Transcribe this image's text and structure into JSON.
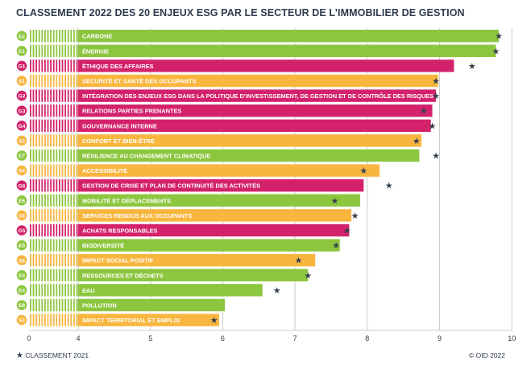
{
  "title": "CLASSEMENT 2022 DES 20 ENJEUX ESG PAR LE SECTEUR DE L’IMMOBILIER DE GESTION",
  "legend": {
    "symbol": "★",
    "label": "CLASSEMENT 2021"
  },
  "credit": "© OID 2022",
  "colors": {
    "E": "#8cc63f",
    "S": "#f8b63f",
    "G": "#d3226b",
    "star": "#34404f",
    "axis": "#cccccc"
  },
  "chart_data": {
    "type": "bar",
    "orientation": "horizontal",
    "xlim": [
      0,
      10
    ],
    "broken_axis": {
      "from": 0,
      "to": 4
    },
    "xticks": [
      "0",
      "4",
      "5",
      "6",
      "7",
      "8",
      "9",
      "10"
    ],
    "categories": [
      {
        "code": "E2",
        "group": "E",
        "label": "CARBONE",
        "value": 9.82,
        "prev": 9.82
      },
      {
        "code": "E1",
        "group": "E",
        "label": "ÉNERGIE",
        "value": 9.78,
        "prev": 9.78
      },
      {
        "code": "G1",
        "group": "G",
        "label": "ÉTHIQUE DES AFFAIRES",
        "value": 9.2,
        "prev": 9.45
      },
      {
        "code": "S1",
        "group": "S",
        "label": "SÉCURITÉ ET SANTÉ DES OCCUPANTS",
        "value": 8.98,
        "prev": 8.95
      },
      {
        "code": "G2",
        "group": "G",
        "label": "INTÉGRATION DES ENJEUX ESG DANS LA POLITIQUE D’INVESTISSEMENT, DE GESTION ET DE CONTRÔLE DES RISQUES",
        "value": 8.95,
        "prev": 8.95
      },
      {
        "code": "G3",
        "group": "G",
        "label": "RELATIONS PARTIES PRENANTES",
        "value": 8.9,
        "prev": 8.78
      },
      {
        "code": "G4",
        "group": "G",
        "label": "GOUVERNANCE INTERNE",
        "value": 8.88,
        "prev": 8.9
      },
      {
        "code": "S2",
        "group": "S",
        "label": "CONFORT ET BIEN-ÊTRE",
        "value": 8.75,
        "prev": 8.68
      },
      {
        "code": "E7",
        "group": "E",
        "label": "RÉSILIENCE AU CHANGEMENT CLIMATIQUE",
        "value": 8.72,
        "prev": 8.95
      },
      {
        "code": "S4",
        "group": "S",
        "label": "ACCESSIBILITÉ",
        "value": 8.17,
        "prev": 7.95
      },
      {
        "code": "G6",
        "group": "G",
        "label": "GESTION DE CRISE ET PLAN DE CONTINUITÉ DES ACTIVITÉS",
        "value": 7.95,
        "prev": 8.3
      },
      {
        "code": "E6",
        "group": "E",
        "label": "MOBILITÉ ET DÉPLACEMENTS",
        "value": 7.9,
        "prev": 7.55
      },
      {
        "code": "S5",
        "group": "S",
        "label": "SERVICES RENDUS AUX OCCUPANTS",
        "value": 7.78,
        "prev": 7.83
      },
      {
        "code": "G5",
        "group": "G",
        "label": "ACHATS RESPONSABLES",
        "value": 7.75,
        "prev": 7.72
      },
      {
        "code": "E5",
        "group": "E",
        "label": "BIODIVERSITÉ",
        "value": 7.62,
        "prev": 7.57
      },
      {
        "code": "S6",
        "group": "S",
        "label": "IMPACT SOCIAL POSITIF",
        "value": 7.28,
        "prev": 7.05
      },
      {
        "code": "E3",
        "group": "E",
        "label": "RESSOURCES ET DÉCHETS",
        "value": 7.18,
        "prev": 7.18
      },
      {
        "code": "E4",
        "group": "E",
        "label": "EAU",
        "value": 6.55,
        "prev": 6.75
      },
      {
        "code": "E8",
        "group": "E",
        "label": "POLLUTION",
        "value": 6.03,
        "prev": null
      },
      {
        "code": "S3",
        "group": "S",
        "label": "IMPACT TERRITORIAL ET EMPLOI",
        "value": 5.95,
        "prev": 5.88
      }
    ]
  }
}
